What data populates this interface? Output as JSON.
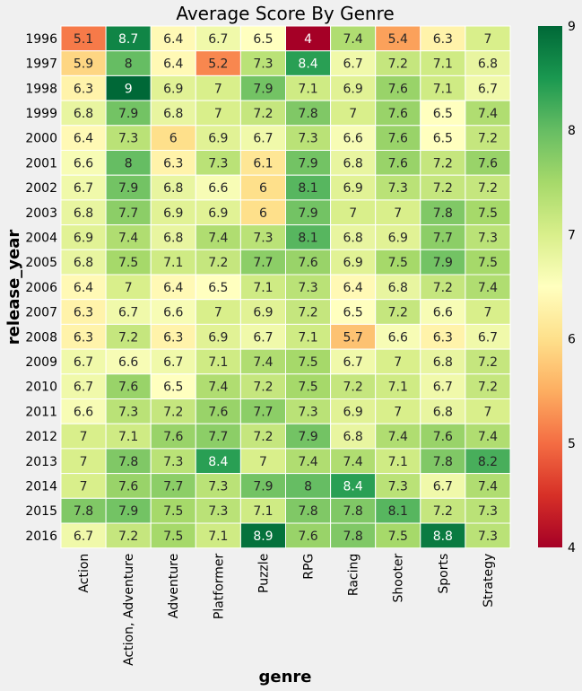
{
  "chart_data": {
    "type": "heatmap",
    "title": "Average Score By Genre",
    "xlabel": "genre",
    "ylabel": "release_year",
    "x_categories": [
      "Action",
      "Action, Adventure",
      "Adventure",
      "Platformer",
      "Puzzle",
      "RPG",
      "Racing",
      "Shooter",
      "Sports",
      "Strategy"
    ],
    "y_categories": [
      "1996",
      "1997",
      "1998",
      "1999",
      "2000",
      "2001",
      "2002",
      "2003",
      "2004",
      "2005",
      "2006",
      "2007",
      "2008",
      "2009",
      "2010",
      "2011",
      "2012",
      "2013",
      "2014",
      "2015",
      "2016"
    ],
    "values": [
      [
        5.1,
        8.7,
        6.4,
        6.7,
        6.5,
        4,
        7.4,
        5.4,
        6.3,
        7
      ],
      [
        5.9,
        8,
        6.4,
        5.2,
        7.3,
        8.4,
        6.7,
        7.2,
        7.1,
        6.8
      ],
      [
        6.3,
        9,
        6.9,
        7,
        7.9,
        7.1,
        6.9,
        7.6,
        7.1,
        6.7
      ],
      [
        6.8,
        7.9,
        6.8,
        7,
        7.2,
        7.8,
        7,
        7.6,
        6.5,
        7.4
      ],
      [
        6.4,
        7.3,
        6,
        6.9,
        6.7,
        7.3,
        6.6,
        7.6,
        6.5,
        7.2
      ],
      [
        6.6,
        8,
        6.3,
        7.3,
        6.1,
        7.9,
        6.8,
        7.6,
        7.2,
        7.6
      ],
      [
        6.7,
        7.9,
        6.8,
        6.6,
        6,
        8.1,
        6.9,
        7.3,
        7.2,
        7.2
      ],
      [
        6.8,
        7.7,
        6.9,
        6.9,
        6,
        7.9,
        7,
        7,
        7.8,
        7.5
      ],
      [
        6.9,
        7.4,
        6.8,
        7.4,
        7.3,
        8.1,
        6.8,
        6.9,
        7.7,
        7.3
      ],
      [
        6.8,
        7.5,
        7.1,
        7.2,
        7.7,
        7.6,
        6.9,
        7.5,
        7.9,
        7.5
      ],
      [
        6.4,
        7,
        6.4,
        6.5,
        7.1,
        7.3,
        6.4,
        6.8,
        7.2,
        7.4
      ],
      [
        6.3,
        6.7,
        6.6,
        7,
        6.9,
        7.2,
        6.5,
        7.2,
        6.6,
        7
      ],
      [
        6.3,
        7.2,
        6.3,
        6.9,
        6.7,
        7.1,
        5.7,
        6.6,
        6.3,
        6.7
      ],
      [
        6.7,
        6.6,
        6.7,
        7.1,
        7.4,
        7.5,
        6.7,
        7,
        6.8,
        7.2
      ],
      [
        6.7,
        7.6,
        6.5,
        7.4,
        7.2,
        7.5,
        7.2,
        7.1,
        6.7,
        7.2
      ],
      [
        6.6,
        7.3,
        7.2,
        7.6,
        7.7,
        7.3,
        6.9,
        7,
        6.8,
        7
      ],
      [
        7,
        7.1,
        7.6,
        7.7,
        7.2,
        7.9,
        6.8,
        7.4,
        7.6,
        7.4
      ],
      [
        7,
        7.8,
        7.3,
        8.4,
        7,
        7.4,
        7.4,
        7.1,
        7.8,
        8.2
      ],
      [
        7,
        7.6,
        7.7,
        7.3,
        7.9,
        8,
        8.4,
        7.3,
        6.7,
        7.4
      ],
      [
        7.8,
        7.9,
        7.5,
        7.3,
        7.1,
        7.8,
        7.8,
        8.1,
        7.2,
        7.3
      ],
      [
        6.7,
        7.2,
        7.5,
        7.1,
        8.9,
        7.6,
        7.8,
        7.5,
        8.8,
        7.3
      ]
    ],
    "colormap": "RdYlGn",
    "vmin": 4,
    "vmax": 9,
    "colorbar_ticks": [
      4,
      5,
      6,
      7,
      8,
      9
    ],
    "annotations": true,
    "cell_border_color": "#ffffff",
    "background_color": "#f0f0f0"
  }
}
